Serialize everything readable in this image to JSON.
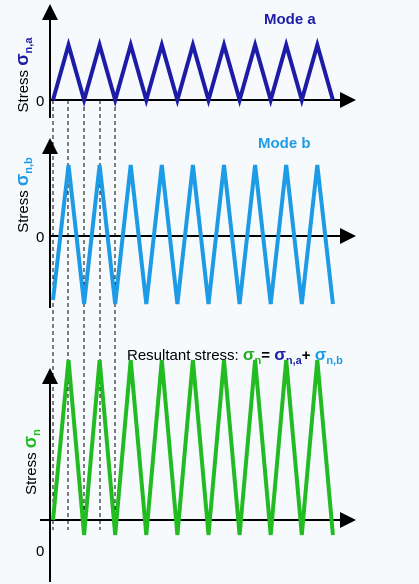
{
  "panels": [
    {
      "mode_label": "Mode a",
      "axis_label": "Stress ",
      "symbol": "σ",
      "subscript": "n,a",
      "zero": "0"
    },
    {
      "mode_label": "Mode b",
      "axis_label": "Stress ",
      "symbol": "σ",
      "subscript": "n,b",
      "zero": "0"
    },
    {
      "axis_label": "Stress ",
      "symbol": "σ",
      "subscript": "n",
      "zero": "0"
    }
  ],
  "resultant": {
    "text": "Resultant stress: ",
    "lhs": "σ",
    "lhs_sub": "n",
    "equals": "= ",
    "term1": "σ",
    "term1_sub": "n,a",
    "plus": "+ ",
    "term2": "σ",
    "term2_sub": "n,b"
  }
}
